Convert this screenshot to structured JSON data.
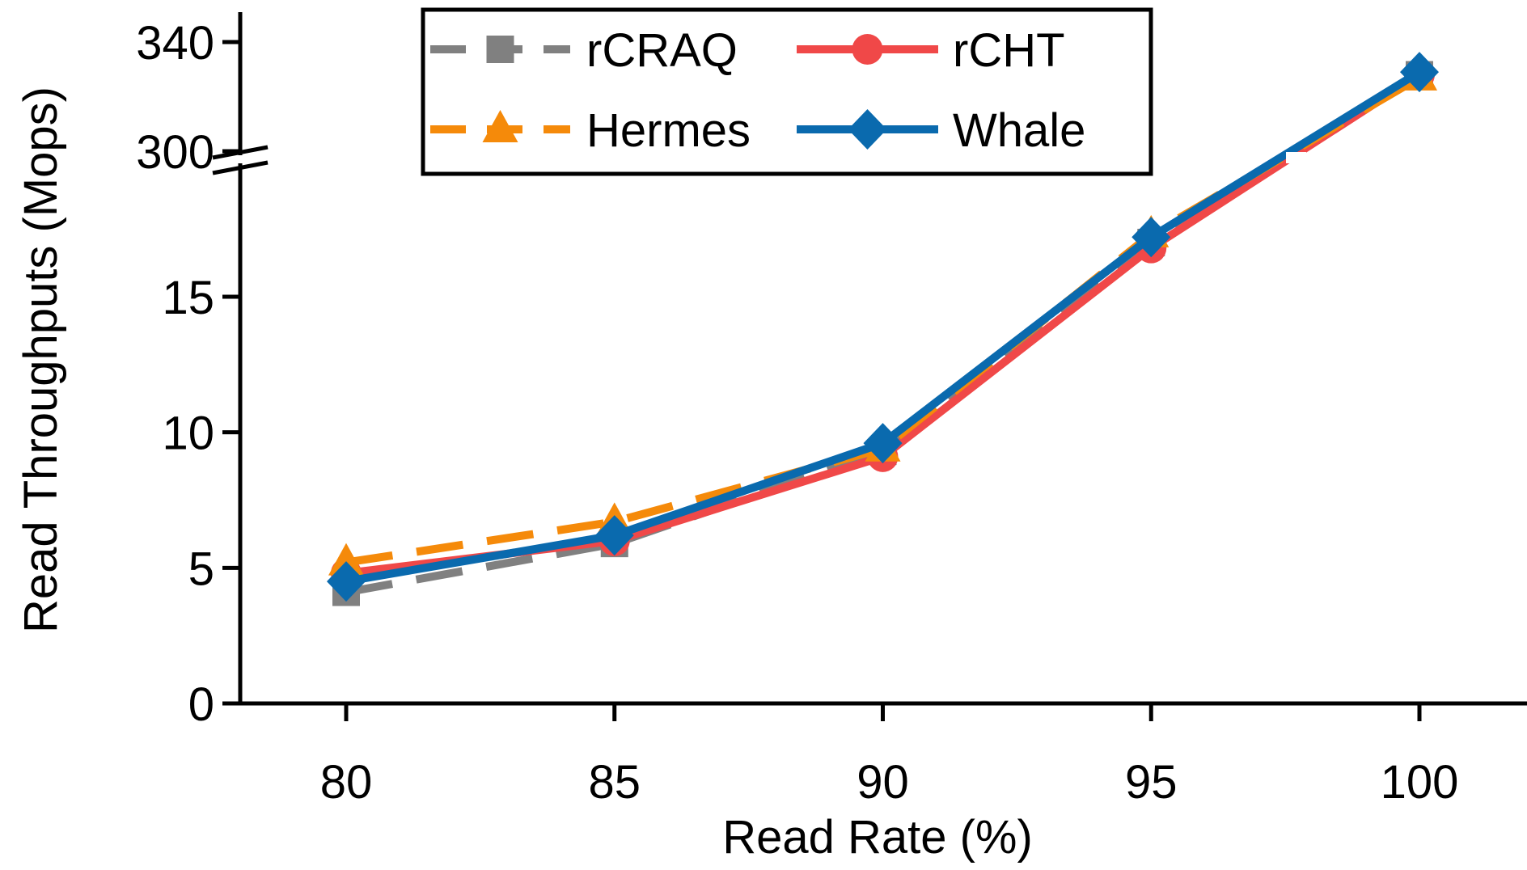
{
  "chart_data": {
    "type": "line",
    "xlabel": "Read Rate (%)",
    "ylabel": "Read Throughputs (Mops)",
    "x": [
      80,
      85,
      90,
      95,
      100
    ],
    "xticks": [
      "80",
      "85",
      "90",
      "95",
      "100"
    ],
    "yticks_lower": [
      "0",
      "5",
      "10",
      "15"
    ],
    "yticks_upper": [
      "300",
      "340"
    ],
    "ylim_lower": [
      0,
      19
    ],
    "ylim_upper": [
      300,
      340
    ],
    "axis_break": true,
    "legend_position": "top-center",
    "series": [
      {
        "name": "rCRAQ",
        "values": [
          4.1,
          5.9,
          9.3,
          17.0,
          328
        ],
        "color": "#808080",
        "marker": "square",
        "dash": "dashed"
      },
      {
        "name": "rCHT",
        "values": [
          4.8,
          6.0,
          9.1,
          16.8,
          328
        ],
        "color": "#f04848",
        "marker": "circle",
        "dash": "solid"
      },
      {
        "name": "Hermes",
        "values": [
          5.2,
          6.7,
          9.4,
          17.3,
          327
        ],
        "color": "#f58a0a",
        "marker": "triangle",
        "dash": "dashed"
      },
      {
        "name": "Whale",
        "values": [
          4.5,
          6.2,
          9.6,
          17.2,
          329
        ],
        "color": "#0a6aae",
        "marker": "diamond",
        "dash": "solid"
      }
    ]
  }
}
